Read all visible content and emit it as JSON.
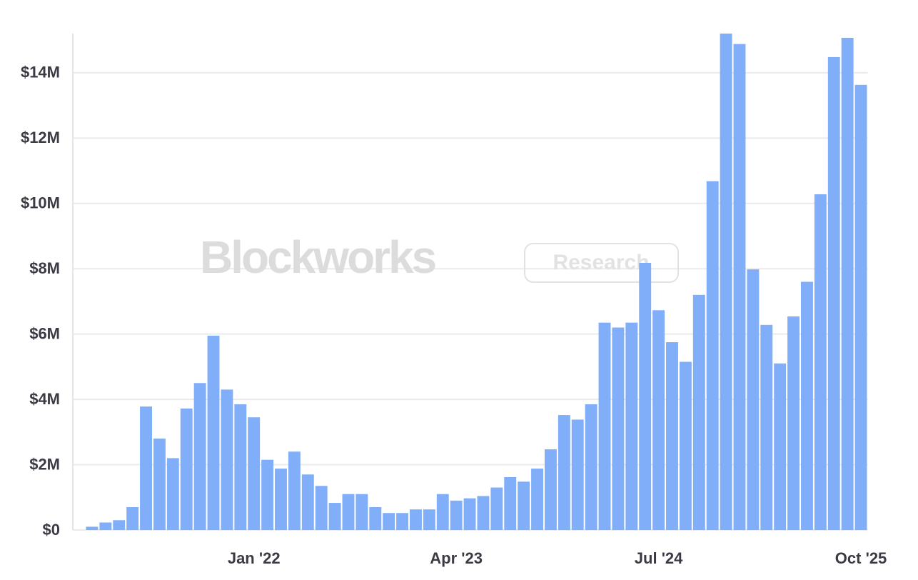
{
  "chart_data": {
    "type": "bar",
    "watermark": {
      "brand": "Blockworks",
      "tag": "Research"
    },
    "categories": [
      null,
      null,
      null,
      null,
      null,
      null,
      null,
      null,
      null,
      null,
      null,
      null,
      "Jan '22",
      null,
      null,
      null,
      null,
      null,
      null,
      null,
      null,
      null,
      null,
      null,
      null,
      null,
      null,
      "Apr '23",
      null,
      null,
      null,
      null,
      null,
      null,
      null,
      null,
      null,
      null,
      null,
      null,
      null,
      null,
      "Jul '24",
      null,
      null,
      null,
      null,
      null,
      null,
      null,
      null,
      null,
      null,
      null,
      null,
      null,
      null,
      "Oct '25"
    ],
    "values": [
      100000,
      230000,
      300000,
      700000,
      3780000,
      2800000,
      2200000,
      3720000,
      4500000,
      5950000,
      4300000,
      3850000,
      3450000,
      2150000,
      1880000,
      2400000,
      1700000,
      1350000,
      830000,
      1100000,
      1100000,
      700000,
      520000,
      520000,
      630000,
      630000,
      1100000,
      900000,
      970000,
      1040000,
      1300000,
      1620000,
      1480000,
      1880000,
      2470000,
      3520000,
      3380000,
      3850000,
      6350000,
      6200000,
      6350000,
      8180000,
      6730000,
      5750000,
      5150000,
      7200000,
      10680000,
      15200000,
      14880000,
      7980000,
      6280000,
      5100000,
      6540000,
      7600000,
      10280000,
      14480000,
      15070000,
      13630000
    ],
    "color": "#80aef9",
    "ylim": [
      0,
      15200000
    ],
    "yticks": [
      {
        "value": 0,
        "label": "$0"
      },
      {
        "value": 2000000,
        "label": "$2M"
      },
      {
        "value": 4000000,
        "label": "$4M"
      },
      {
        "value": 6000000,
        "label": "$6M"
      },
      {
        "value": 8000000,
        "label": "$8M"
      },
      {
        "value": 10000000,
        "label": "$10M"
      },
      {
        "value": 12000000,
        "label": "$12M"
      },
      {
        "value": 14000000,
        "label": "$14M"
      }
    ],
    "grid": true
  }
}
